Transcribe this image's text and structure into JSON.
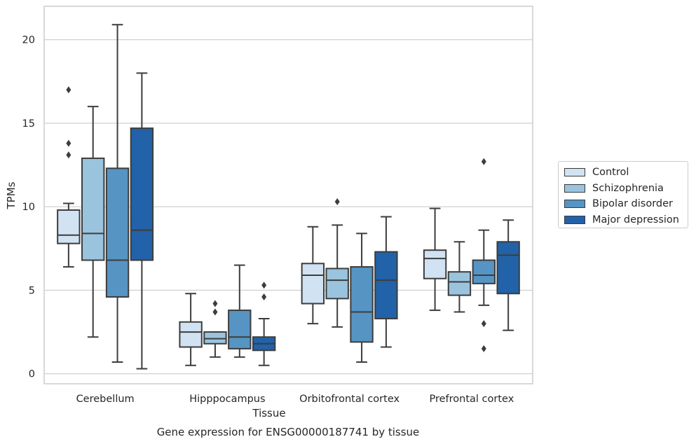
{
  "chart_data": {
    "type": "box",
    "title": "",
    "caption": "Gene expression for ENSG00000187741 by tissue",
    "xlabel": "Tissue",
    "ylabel": "TPMs",
    "ylim": [
      -0.6,
      22
    ],
    "yticks": [
      0,
      5,
      10,
      15,
      20
    ],
    "grid": "horizontal",
    "legend_position": "right",
    "categories": [
      "Cerebellum",
      "Hipppocampus",
      "Orbitofrontal cortex",
      "Prefrontal cortex"
    ],
    "series": [
      {
        "name": "Control",
        "color": "#d1e2f2",
        "boxes": [
          {
            "whislo": 6.4,
            "q1": 7.8,
            "med": 8.3,
            "q3": 9.8,
            "whishi": 10.2,
            "fliers": [
              17.0,
              13.8,
              13.1
            ]
          },
          {
            "whislo": 0.5,
            "q1": 1.6,
            "med": 2.5,
            "q3": 3.1,
            "whishi": 4.8,
            "fliers": []
          },
          {
            "whislo": 3.0,
            "q1": 4.2,
            "med": 5.9,
            "q3": 6.6,
            "whishi": 8.8,
            "fliers": []
          },
          {
            "whislo": 3.8,
            "q1": 5.7,
            "med": 6.9,
            "q3": 7.4,
            "whishi": 9.9,
            "fliers": []
          }
        ]
      },
      {
        "name": "Schizophrenia",
        "color": "#9ac4de",
        "boxes": [
          {
            "whislo": 2.2,
            "q1": 6.8,
            "med": 8.4,
            "q3": 12.9,
            "whishi": 16.0,
            "fliers": []
          },
          {
            "whislo": 1.0,
            "q1": 1.8,
            "med": 2.1,
            "q3": 2.5,
            "whishi": 2.5,
            "fliers": [
              4.2,
              3.7
            ]
          },
          {
            "whislo": 2.8,
            "q1": 4.5,
            "med": 5.6,
            "q3": 6.3,
            "whishi": 8.9,
            "fliers": [
              10.3
            ]
          },
          {
            "whislo": 3.7,
            "q1": 4.7,
            "med": 5.5,
            "q3": 6.1,
            "whishi": 7.9,
            "fliers": []
          }
        ]
      },
      {
        "name": "Bipolar disorder",
        "color": "#5694c3",
        "boxes": [
          {
            "whislo": 0.7,
            "q1": 4.6,
            "med": 6.8,
            "q3": 12.3,
            "whishi": 20.9,
            "fliers": []
          },
          {
            "whislo": 1.0,
            "q1": 1.5,
            "med": 2.2,
            "q3": 3.8,
            "whishi": 6.5,
            "fliers": []
          },
          {
            "whislo": 0.7,
            "q1": 1.9,
            "med": 3.7,
            "q3": 6.4,
            "whishi": 8.4,
            "fliers": []
          },
          {
            "whislo": 4.1,
            "q1": 5.4,
            "med": 5.9,
            "q3": 6.8,
            "whishi": 8.6,
            "fliers": [
              12.7,
              3.0,
              1.5
            ]
          }
        ]
      },
      {
        "name": "Major depression",
        "color": "#2262a8",
        "boxes": [
          {
            "whislo": 0.3,
            "q1": 6.8,
            "med": 8.6,
            "q3": 14.7,
            "whishi": 18.0,
            "fliers": []
          },
          {
            "whislo": 0.5,
            "q1": 1.4,
            "med": 1.8,
            "q3": 2.2,
            "whishi": 3.3,
            "fliers": [
              5.3,
              4.6
            ]
          },
          {
            "whislo": 1.6,
            "q1": 3.3,
            "med": 5.6,
            "q3": 7.3,
            "whishi": 9.4,
            "fliers": []
          },
          {
            "whislo": 2.6,
            "q1": 4.8,
            "med": 7.1,
            "q3": 7.9,
            "whishi": 9.2,
            "fliers": []
          }
        ]
      }
    ]
  }
}
